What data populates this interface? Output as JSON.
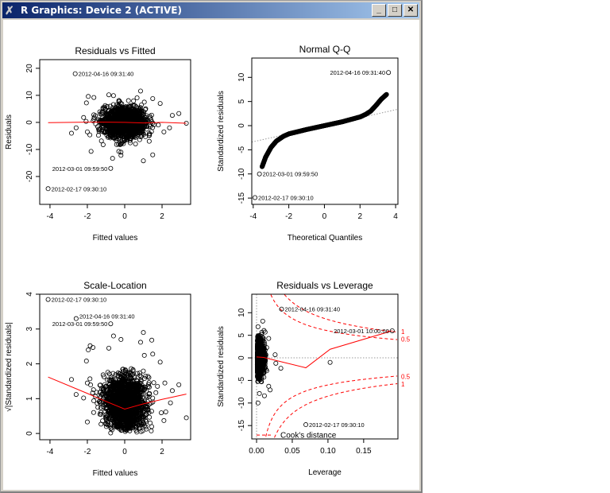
{
  "window": {
    "title": "R Graphics: Device 2 (ACTIVE)",
    "minimize": "_",
    "maximize": "□",
    "close": "✕"
  },
  "colors": {
    "points": "#000000",
    "smooth": "#ff0000",
    "reference": "#999999",
    "cooks": "#ff0000"
  },
  "chart_data": [
    {
      "type": "scatter",
      "title": "Residuals vs Fitted",
      "xlabel": "Fitted values",
      "ylabel": "Residuals",
      "xlim": [
        -4.55,
        3.53
      ],
      "ylim": [
        -30.3,
        23.2
      ],
      "xticks": [
        -4,
        -2,
        0,
        2
      ],
      "yticks": [
        -20,
        -10,
        0,
        10,
        20
      ],
      "smooth": [
        [
          -4.1,
          -0.1
        ],
        [
          -2,
          0.1
        ],
        [
          -1,
          0.1
        ],
        [
          0,
          0
        ],
        [
          1,
          -0.2
        ],
        [
          2,
          0
        ],
        [
          3.3,
          -0.3
        ]
      ],
      "outliers": [
        [
          -2.85,
          -4
        ],
        [
          -2.6,
          -2
        ],
        [
          -2.2,
          1.8
        ],
        [
          -2.05,
          7.2
        ],
        [
          -1.95,
          9.6
        ],
        [
          -1.65,
          9.2
        ],
        [
          -1.8,
          -10.7
        ],
        [
          -2.0,
          -3.5
        ],
        [
          -0.85,
          10.2
        ],
        [
          -0.6,
          9.9
        ],
        [
          0.85,
          11.6
        ],
        [
          1.05,
          7.5
        ],
        [
          1.5,
          8.8
        ],
        [
          1.9,
          7
        ],
        [
          2.9,
          3.3
        ],
        [
          2.55,
          2.6
        ],
        [
          3.3,
          -0.3
        ],
        [
          1.0,
          -14.2
        ],
        [
          1.5,
          -12
        ],
        [
          -0.65,
          -13.3
        ],
        [
          -0.2,
          -12.2
        ],
        [
          -0.2,
          -11
        ],
        [
          2.1,
          -3.5
        ],
        [
          2.4,
          -2
        ]
      ],
      "labeled": [
        {
          "x": -2.65,
          "y": 18,
          "label": "2012-04-16 09:31:40",
          "side": "right"
        },
        {
          "x": -0.75,
          "y": -17,
          "label": "2012-03-01 09:59:50",
          "side": "left"
        },
        {
          "x": -4.1,
          "y": -24.5,
          "label": "2012-02-17 09:30:10",
          "side": "right"
        }
      ]
    },
    {
      "type": "scatter",
      "title": "Normal Q-Q",
      "xlabel": "Theoretical Quantiles",
      "ylabel": "Standardized residuals",
      "xlim": [
        -4.08,
        4.13
      ],
      "ylim": [
        -16.3,
        14
      ],
      "xticks": [
        -4,
        -2,
        0,
        2,
        4
      ],
      "yticks": [
        -15,
        -10,
        -5,
        0,
        5,
        10
      ],
      "reference_line": [
        [
          -4.08,
          -3.4
        ],
        [
          4.13,
          3.4
        ]
      ],
      "curve": [
        [
          -3.5,
          -8.5
        ],
        [
          -3.3,
          -6.5
        ],
        [
          -3.0,
          -4.5
        ],
        [
          -2.7,
          -3.2
        ],
        [
          -2.3,
          -2.2
        ],
        [
          -2,
          -1.7
        ],
        [
          -1,
          -0.8
        ],
        [
          0,
          0
        ],
        [
          1,
          0.8
        ],
        [
          2,
          1.8
        ],
        [
          2.3,
          2.3
        ],
        [
          2.6,
          3.0
        ],
        [
          2.9,
          4.2
        ],
        [
          3.2,
          5.5
        ],
        [
          3.5,
          6.5
        ]
      ],
      "labeled": [
        {
          "x": 3.6,
          "y": 11,
          "label": "2012-04-16 09:31:40",
          "side": "left"
        },
        {
          "x": -3.65,
          "y": -10,
          "label": "2012-03-01 09:59:50",
          "side": "right"
        },
        {
          "x": -3.9,
          "y": -14.9,
          "label": "2012-02-17 09:30:10",
          "side": "right"
        }
      ]
    },
    {
      "type": "scatter",
      "title": "Scale-Location",
      "xlabel": "Fitted values",
      "ylabel": "√|Standardized residuals|",
      "xlim": [
        -4.55,
        3.53
      ],
      "ylim": [
        -0.18,
        4.0
      ],
      "xticks": [
        -4,
        -2,
        0,
        2
      ],
      "yticks": [
        0,
        1,
        2,
        3,
        4
      ],
      "smooth": [
        [
          -4.1,
          1.62
        ],
        [
          -2,
          1.15
        ],
        [
          -1,
          0.92
        ],
        [
          0,
          0.7
        ],
        [
          1,
          0.85
        ],
        [
          2,
          0.98
        ],
        [
          3.3,
          1.13
        ]
      ],
      "outliers": [
        [
          -2.85,
          1.55
        ],
        [
          -2.6,
          1.12
        ],
        [
          -2.2,
          1.02
        ],
        [
          -2.05,
          2.08
        ],
        [
          -1.95,
          2.4
        ],
        [
          -1.85,
          2.52
        ],
        [
          -1.7,
          2.47
        ],
        [
          -2.0,
          1.45
        ],
        [
          -2.0,
          0.33
        ],
        [
          -0.85,
          2.45
        ],
        [
          -0.6,
          2.8
        ],
        [
          -0.2,
          2.7
        ],
        [
          0.85,
          2.62
        ],
        [
          1.0,
          2.9
        ],
        [
          1.45,
          2.68
        ],
        [
          1.5,
          2.28
        ],
        [
          1.9,
          2.05
        ],
        [
          2.15,
          1.45
        ],
        [
          2.9,
          1.4
        ],
        [
          2.55,
          1.23
        ],
        [
          3.3,
          0.45
        ],
        [
          2.1,
          0.37
        ],
        [
          2.2,
          0.62
        ],
        [
          2.45,
          0.88
        ]
      ],
      "labeled": [
        {
          "x": -4.1,
          "y": 3.85,
          "label": "2012-02-17 09:30:10",
          "side": "right"
        },
        {
          "x": -2.6,
          "y": 3.3,
          "label": "2012-04-16 09:31:40",
          "side": "right"
        },
        {
          "x": -0.75,
          "y": 3.15,
          "label": "2012-03-01 09:59:50",
          "side": "left"
        }
      ]
    },
    {
      "type": "scatter",
      "title": "Residuals vs Leverage",
      "xlabel": "Leverage",
      "ylabel": "Standardized residuals",
      "xlim": [
        -0.0067,
        0.198
      ],
      "ylim": [
        -17.96,
        14.1
      ],
      "xticks": [
        0.0,
        0.05,
        0.1,
        0.15
      ],
      "xticklabels": [
        "0.00",
        "0.05",
        "0.10",
        "0.15"
      ],
      "yticks": [
        -15,
        -10,
        -5,
        0,
        5,
        10
      ],
      "smooth": [
        [
          0,
          0.2
        ],
        [
          0.01,
          0.1
        ],
        [
          0.02,
          -0.3
        ],
        [
          0.069,
          -2.2
        ],
        [
          0.103,
          1.9
        ],
        [
          0.19,
          6
        ]
      ],
      "outliers": [
        [
          0.103,
          -1
        ],
        [
          0.034,
          -2.3
        ],
        [
          0.017,
          -6.3
        ],
        [
          0.019,
          -7.1
        ],
        [
          0.011,
          -8.4
        ],
        [
          0.002,
          -10
        ],
        [
          0.026,
          0.7
        ],
        [
          0.027,
          -1.2
        ],
        [
          0.017,
          4.3
        ],
        [
          0.012,
          5.7
        ],
        [
          0.002,
          6.9
        ],
        [
          0.004,
          -7.9
        ]
      ],
      "cooks_levels": [
        0.5,
        1
      ],
      "cooks_legend": "Cook's distance",
      "labeled": [
        {
          "x": 0.035,
          "y": 10.8,
          "label": "2012-04-16 09:31:40",
          "side": "right"
        },
        {
          "x": 0.19,
          "y": 6,
          "label": "2012-03-01 10:00:00",
          "side": "left"
        },
        {
          "x": 0.069,
          "y": -14.8,
          "label": "2012-02-17 09:30:10",
          "side": "right"
        }
      ]
    }
  ]
}
